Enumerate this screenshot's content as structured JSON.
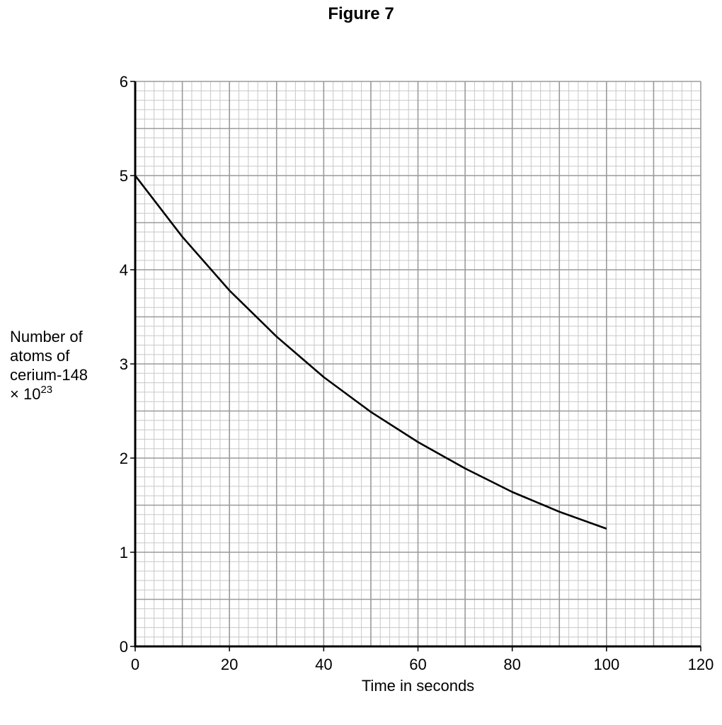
{
  "figure": {
    "title": "Figure 7"
  },
  "chart_data": {
    "type": "line",
    "title": "Figure 7",
    "xlabel": "Time in seconds",
    "ylabel_lines": [
      "Number of",
      "atoms of",
      "cerium-148"
    ],
    "ylabel_factor_base": "× 10",
    "ylabel_factor_exponent": "23",
    "xlim": [
      0,
      120
    ],
    "ylim": [
      0,
      6
    ],
    "x_ticks": [
      0,
      20,
      40,
      60,
      80,
      100,
      120
    ],
    "y_ticks": [
      0,
      1,
      2,
      3,
      4,
      5,
      6
    ],
    "grid": {
      "major_x": 10,
      "minor_x": 2,
      "major_y": 0.5,
      "minor_y": 0.1
    },
    "series": [
      {
        "x": [
          0,
          10,
          20,
          30,
          40,
          50,
          60,
          70,
          80,
          90,
          100
        ],
        "y": [
          5.0,
          4.35,
          3.78,
          3.29,
          2.86,
          2.49,
          2.17,
          1.89,
          1.64,
          1.43,
          1.25
        ]
      }
    ]
  }
}
